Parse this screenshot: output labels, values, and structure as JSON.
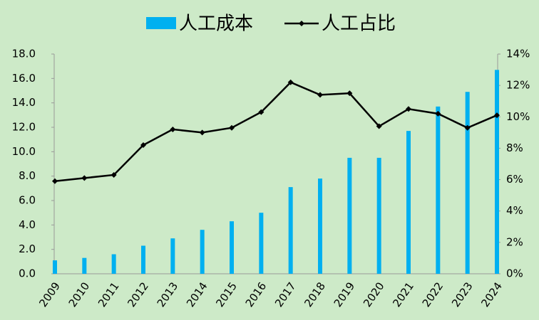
{
  "chart_data": {
    "type": "bar-line",
    "categories": [
      "2009",
      "2010",
      "2011",
      "2012",
      "2013",
      "2014",
      "2015",
      "2016",
      "2017",
      "2018",
      "2019",
      "2020",
      "2021",
      "2022",
      "2023",
      "2024"
    ],
    "series": [
      {
        "name": "人工成本",
        "type": "bar",
        "color": "#00b0f0",
        "values": [
          1.1,
          1.3,
          1.6,
          2.3,
          2.9,
          3.6,
          4.3,
          5.0,
          7.1,
          7.8,
          9.5,
          9.5,
          11.7,
          13.7,
          14.9,
          16.7
        ]
      },
      {
        "name": "人工占比",
        "type": "line",
        "axis": "y2",
        "color": "#000000",
        "values": [
          5.9,
          6.1,
          6.3,
          8.2,
          9.2,
          9.0,
          9.3,
          10.3,
          12.2,
          11.4,
          11.5,
          9.4,
          10.5,
          10.2,
          9.3,
          10.1
        ]
      }
    ],
    "ylim": [
      0,
      18
    ],
    "yticks": [
      {
        "value": 0,
        "label": "0.0"
      },
      {
        "value": 2,
        "label": "2.0"
      },
      {
        "value": 4,
        "label": "4.0"
      },
      {
        "value": 6,
        "label": "6.0"
      },
      {
        "value": 8,
        "label": "8.0"
      },
      {
        "value": 10,
        "label": "10.0"
      },
      {
        "value": 12,
        "label": "12.0"
      },
      {
        "value": 14,
        "label": "14.0"
      },
      {
        "value": 16,
        "label": "16.0"
      },
      {
        "value": 18,
        "label": "18.0"
      }
    ],
    "y2lim": [
      0,
      14
    ],
    "y2ticks": [
      {
        "value": 0,
        "label": "0%"
      },
      {
        "value": 2,
        "label": "2%"
      },
      {
        "value": 4,
        "label": "4%"
      },
      {
        "value": 6,
        "label": "6%"
      },
      {
        "value": 8,
        "label": "8%"
      },
      {
        "value": 10,
        "label": "10%"
      },
      {
        "value": 12,
        "label": "12%"
      },
      {
        "value": 14,
        "label": "14%"
      }
    ],
    "legend": "top",
    "background": "#cdeac8"
  }
}
